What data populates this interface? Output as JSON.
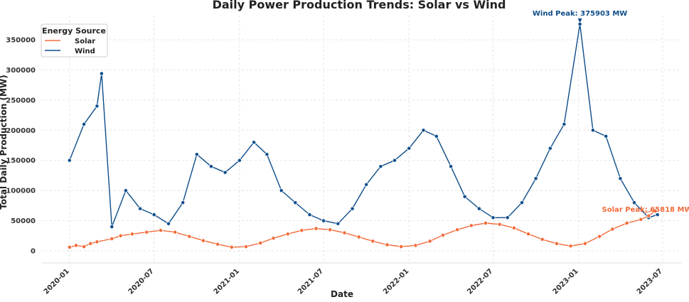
{
  "chart_data": {
    "type": "line",
    "title": "Daily Power Production Trends: Solar vs Wind",
    "xlabel": "Date",
    "ylabel": "Total Daily Production (MW)",
    "x_range": [
      "2019-11-01",
      "2023-08-10"
    ],
    "ylim": [
      -20000,
      390000
    ],
    "x_ticks": [
      "2020-01",
      "2020-07",
      "2021-01",
      "2021-07",
      "2022-01",
      "2022-07",
      "2023-01",
      "2023-07"
    ],
    "y_ticks": [
      "0",
      "50000",
      "100000",
      "150000",
      "200000",
      "250000",
      "300000",
      "350000"
    ],
    "grid": true,
    "legend": {
      "title": "Energy Source",
      "position": "top-left"
    },
    "series": [
      {
        "name": "Solar",
        "color": "#f26b3a",
        "points": [
          [
            "2020-01-01",
            6000
          ],
          [
            "2020-01-15",
            9000
          ],
          [
            "2020-02-01",
            7000
          ],
          [
            "2020-02-15",
            12000
          ],
          [
            "2020-02-29",
            15000
          ],
          [
            "2020-04-01",
            20000
          ],
          [
            "2020-04-20",
            25000
          ],
          [
            "2020-05-15",
            28000
          ],
          [
            "2020-06-15",
            31000
          ],
          [
            "2020-07-15",
            34000
          ],
          [
            "2020-08-15",
            31000
          ],
          [
            "2020-09-15",
            24000
          ],
          [
            "2020-10-15",
            17000
          ],
          [
            "2020-11-15",
            11000
          ],
          [
            "2020-12-15",
            6000
          ],
          [
            "2021-01-15",
            7000
          ],
          [
            "2021-02-15",
            13000
          ],
          [
            "2021-03-15",
            21000
          ],
          [
            "2021-04-15",
            28000
          ],
          [
            "2021-05-15",
            34000
          ],
          [
            "2021-06-15",
            37000
          ],
          [
            "2021-07-15",
            35000
          ],
          [
            "2021-08-15",
            30000
          ],
          [
            "2021-09-15",
            23000
          ],
          [
            "2021-10-15",
            16000
          ],
          [
            "2021-11-15",
            10000
          ],
          [
            "2021-12-15",
            7000
          ],
          [
            "2022-01-15",
            9000
          ],
          [
            "2022-02-15",
            16000
          ],
          [
            "2022-03-15",
            26000
          ],
          [
            "2022-04-15",
            35000
          ],
          [
            "2022-05-15",
            42000
          ],
          [
            "2022-06-15",
            46000
          ],
          [
            "2022-07-15",
            44000
          ],
          [
            "2022-08-15",
            38000
          ],
          [
            "2022-09-15",
            28000
          ],
          [
            "2022-10-15",
            19000
          ],
          [
            "2022-11-15",
            12000
          ],
          [
            "2022-12-15",
            8000
          ],
          [
            "2023-01-15",
            12000
          ],
          [
            "2023-02-15",
            24000
          ],
          [
            "2023-03-15",
            36000
          ],
          [
            "2023-04-15",
            46000
          ],
          [
            "2023-05-15",
            52000
          ],
          [
            "2023-06-01",
            58000
          ],
          [
            "2023-06-15",
            65818
          ]
        ]
      },
      {
        "name": "Wind",
        "color": "#0e4d8a",
        "points": [
          [
            "2020-01-01",
            150000
          ],
          [
            "2020-02-01",
            210000
          ],
          [
            "2020-02-29",
            240000
          ],
          [
            "2020-03-10",
            294000
          ],
          [
            "2020-04-01",
            40000
          ],
          [
            "2020-05-01",
            100000
          ],
          [
            "2020-06-01",
            70000
          ],
          [
            "2020-07-01",
            60000
          ],
          [
            "2020-08-01",
            45000
          ],
          [
            "2020-09-01",
            80000
          ],
          [
            "2020-10-01",
            160000
          ],
          [
            "2020-11-01",
            140000
          ],
          [
            "2020-12-01",
            130000
          ],
          [
            "2021-01-01",
            150000
          ],
          [
            "2021-02-01",
            180000
          ],
          [
            "2021-03-01",
            160000
          ],
          [
            "2021-04-01",
            100000
          ],
          [
            "2021-05-01",
            80000
          ],
          [
            "2021-06-01",
            60000
          ],
          [
            "2021-07-01",
            50000
          ],
          [
            "2021-08-01",
            45000
          ],
          [
            "2021-09-01",
            70000
          ],
          [
            "2021-10-01",
            110000
          ],
          [
            "2021-11-01",
            140000
          ],
          [
            "2021-12-01",
            150000
          ],
          [
            "2022-01-01",
            170000
          ],
          [
            "2022-02-01",
            200000
          ],
          [
            "2022-03-01",
            190000
          ],
          [
            "2022-04-01",
            140000
          ],
          [
            "2022-05-01",
            90000
          ],
          [
            "2022-06-01",
            70000
          ],
          [
            "2022-07-01",
            55000
          ],
          [
            "2022-08-01",
            55000
          ],
          [
            "2022-09-01",
            80000
          ],
          [
            "2022-10-01",
            120000
          ],
          [
            "2022-11-01",
            170000
          ],
          [
            "2022-12-01",
            210000
          ],
          [
            "2023-01-04",
            375903
          ],
          [
            "2023-02-01",
            200000
          ],
          [
            "2023-03-01",
            190000
          ],
          [
            "2023-04-01",
            120000
          ],
          [
            "2023-05-01",
            80000
          ],
          [
            "2023-06-01",
            55000
          ],
          [
            "2023-06-20",
            60000
          ]
        ]
      }
    ],
    "annotations": [
      {
        "text": "Wind Peak: 375903 MW",
        "date": "2023-01-04",
        "value": 375903,
        "color": "#0e4d8a"
      },
      {
        "text": "Solar Peak: 65818 MW",
        "date": "2023-06-15",
        "value": 65818,
        "color": "#f26b3a"
      }
    ]
  }
}
